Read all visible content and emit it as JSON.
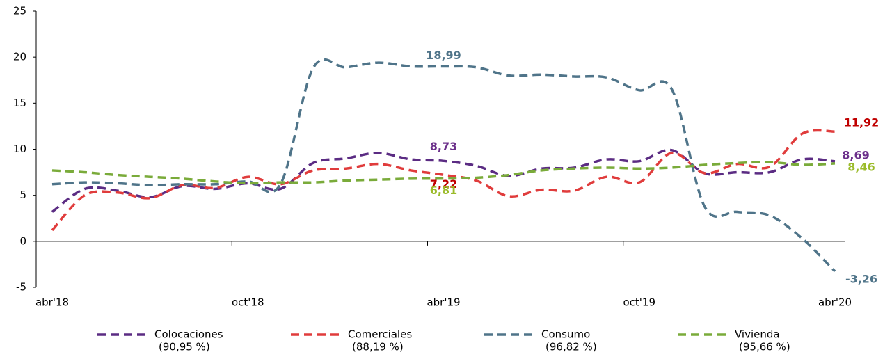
{
  "chart_data": {
    "type": "line",
    "categories": [
      "abr'18",
      null,
      null,
      null,
      null,
      null,
      "oct'18",
      null,
      null,
      null,
      null,
      null,
      "abr'19",
      null,
      null,
      null,
      null,
      null,
      "oct'19",
      null,
      null,
      null,
      null,
      null,
      "abr'20"
    ],
    "ylim": [
      -5,
      25
    ],
    "yticks": [
      -5,
      0,
      5,
      10,
      15,
      20,
      25
    ],
    "series": [
      {
        "name": "Colocaciones",
        "share": "(90,95 %)",
        "color": "#5b2c83",
        "label_color": "#6b2f8a",
        "values": [
          3.2,
          5.7,
          5.5,
          4.8,
          6.0,
          5.7,
          6.3,
          5.7,
          8.5,
          9.0,
          9.6,
          8.9,
          8.73,
          8.2,
          7.1,
          7.9,
          8.0,
          8.9,
          8.7,
          9.9,
          7.4,
          7.5,
          7.5,
          8.9,
          8.69
        ],
        "value_labels": [
          null,
          null,
          null,
          null,
          null,
          null,
          null,
          null,
          null,
          null,
          null,
          null,
          "8,73",
          null,
          null,
          null,
          null,
          null,
          null,
          null,
          null,
          null,
          null,
          null,
          "8,69"
        ]
      },
      {
        "name": "Comerciales",
        "share": "(88,19 %)",
        "color": "#e03c3c",
        "label_color": "#c00000",
        "values": [
          1.2,
          5.0,
          5.3,
          4.7,
          6.1,
          5.8,
          7.0,
          6.2,
          7.7,
          7.9,
          8.4,
          7.7,
          7.22,
          6.6,
          4.9,
          5.6,
          5.5,
          7.0,
          6.4,
          9.6,
          7.4,
          8.4,
          8.1,
          11.7,
          11.92
        ],
        "value_labels": [
          null,
          null,
          null,
          null,
          null,
          null,
          null,
          null,
          null,
          null,
          null,
          null,
          "7,22",
          null,
          null,
          null,
          null,
          null,
          null,
          null,
          null,
          null,
          null,
          null,
          "11,92"
        ]
      },
      {
        "name": "Consumo",
        "share": "(96,82 %)",
        "color": "#4f7489",
        "label_color": "#4f7489",
        "values": [
          6.2,
          6.4,
          6.3,
          6.1,
          6.2,
          6.2,
          6.5,
          6.2,
          18.8,
          18.9,
          19.4,
          19.0,
          18.99,
          18.9,
          18.0,
          18.1,
          17.9,
          17.8,
          16.4,
          16.5,
          3.8,
          3.2,
          2.8,
          0.3,
          -3.26
        ],
        "value_labels": [
          null,
          null,
          null,
          null,
          null,
          null,
          null,
          null,
          null,
          null,
          null,
          null,
          "18,99",
          null,
          null,
          null,
          null,
          null,
          null,
          null,
          null,
          null,
          null,
          null,
          "-3,26"
        ]
      },
      {
        "name": "Vivienda",
        "share": "(95,66 %)",
        "color": "#7aab3a",
        "label_color": "#9bbb2a",
        "values": [
          7.7,
          7.5,
          7.2,
          7.0,
          6.8,
          6.5,
          6.3,
          6.4,
          6.4,
          6.6,
          6.7,
          6.8,
          6.81,
          6.9,
          7.2,
          7.7,
          7.9,
          8.0,
          7.9,
          8.0,
          8.3,
          8.5,
          8.6,
          8.3,
          8.46
        ],
        "value_labels": [
          null,
          null,
          null,
          null,
          null,
          null,
          null,
          null,
          null,
          null,
          null,
          null,
          "6,81",
          null,
          null,
          null,
          null,
          null,
          null,
          null,
          null,
          null,
          null,
          null,
          "8,46"
        ]
      }
    ]
  }
}
